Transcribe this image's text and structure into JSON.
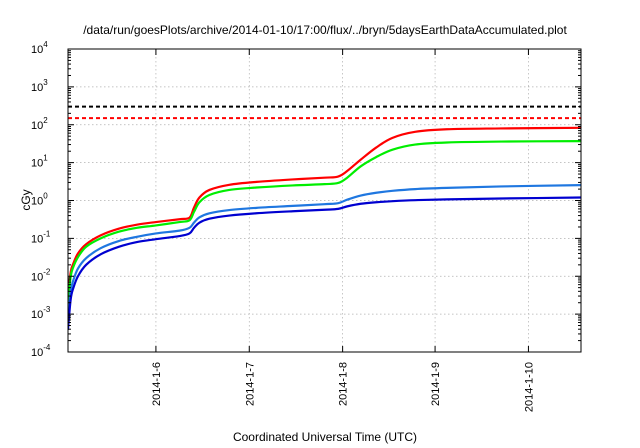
{
  "chart_data": {
    "type": "line",
    "title": "/data/run/goesPlots/archive/2014-01-10/17:00/flux/../bryn/5daysEarthDataAccumulated.plot",
    "xlabel": "Coordinated Universal Time (UTC)",
    "ylabel": "cGy",
    "x_is_date": true,
    "xlim": [
      2014.0512,
      2014.1078
    ],
    "ylim_exp": [
      -4,
      4
    ],
    "y_scale": "log",
    "grid": true,
    "legend": "none",
    "x_ticks": [
      {
        "label": "2014-1-6",
        "x": 2014.0609
      },
      {
        "label": "2014-1-7",
        "x": 2014.0712
      },
      {
        "label": "2014-1-8",
        "x": 2014.0815
      },
      {
        "label": "2014-1-9",
        "x": 2014.0917
      },
      {
        "label": "2014-1-10",
        "x": 2014.102
      }
    ],
    "y_ticks": [
      {
        "base": "10",
        "exp": "-4",
        "value": -4
      },
      {
        "base": "10",
        "exp": "-3",
        "value": -3
      },
      {
        "base": "10",
        "exp": "-2",
        "value": -2
      },
      {
        "base": "10",
        "exp": "-1",
        "value": -1
      },
      {
        "base": "10",
        "exp": "0",
        "value": 0
      },
      {
        "base": "10",
        "exp": "1",
        "value": 1
      },
      {
        "base": "10",
        "exp": "2",
        "value": 2
      },
      {
        "base": "10",
        "exp": "3",
        "value": 3
      },
      {
        "base": "10",
        "exp": "4",
        "value": 4
      }
    ],
    "thresholds": [
      {
        "value": 300,
        "color": "#000000"
      },
      {
        "value": 150,
        "color": "#ff0000"
      }
    ],
    "series": [
      {
        "color": "#ff0000",
        "points": [
          [
            2014.0512,
            0.003
          ],
          [
            2014.0515,
            0.013
          ],
          [
            2014.0518,
            0.022
          ],
          [
            2014.0523,
            0.04
          ],
          [
            2014.0532,
            0.07
          ],
          [
            2014.0548,
            0.12
          ],
          [
            2014.0568,
            0.18
          ],
          [
            2014.0588,
            0.23
          ],
          [
            2014.0609,
            0.27
          ],
          [
            2014.0635,
            0.32
          ],
          [
            2014.0646,
            0.35
          ],
          [
            2014.0651,
            0.65
          ],
          [
            2014.0657,
            1.2
          ],
          [
            2014.0668,
            1.9
          ],
          [
            2014.069,
            2.6
          ],
          [
            2014.072,
            3.1
          ],
          [
            2014.076,
            3.6
          ],
          [
            2014.0795,
            4.0
          ],
          [
            2014.081,
            4.3
          ],
          [
            2014.082,
            6.0
          ],
          [
            2014.0835,
            12
          ],
          [
            2014.0852,
            25
          ],
          [
            2014.087,
            45
          ],
          [
            2014.0895,
            65
          ],
          [
            2014.093,
            76
          ],
          [
            2014.099,
            80
          ],
          [
            2014.1078,
            83
          ]
        ]
      },
      {
        "color": "#00ee00",
        "points": [
          [
            2014.0512,
            0.002
          ],
          [
            2014.0515,
            0.01
          ],
          [
            2014.0518,
            0.018
          ],
          [
            2014.0523,
            0.032
          ],
          [
            2014.0532,
            0.06
          ],
          [
            2014.0548,
            0.1
          ],
          [
            2014.0568,
            0.15
          ],
          [
            2014.0588,
            0.19
          ],
          [
            2014.0609,
            0.22
          ],
          [
            2014.0635,
            0.27
          ],
          [
            2014.0646,
            0.3
          ],
          [
            2014.0651,
            0.5
          ],
          [
            2014.0657,
            0.9
          ],
          [
            2014.0668,
            1.4
          ],
          [
            2014.069,
            1.9
          ],
          [
            2014.072,
            2.2
          ],
          [
            2014.076,
            2.5
          ],
          [
            2014.0795,
            2.7
          ],
          [
            2014.081,
            2.9
          ],
          [
            2014.082,
            4.0
          ],
          [
            2014.0835,
            8
          ],
          [
            2014.0852,
            14
          ],
          [
            2014.087,
            22
          ],
          [
            2014.0895,
            30
          ],
          [
            2014.093,
            34
          ],
          [
            2014.099,
            36
          ],
          [
            2014.1078,
            37
          ]
        ]
      },
      {
        "color": "#1f77e0",
        "points": [
          [
            2014.0512,
            0.0007
          ],
          [
            2014.0515,
            0.004
          ],
          [
            2014.0518,
            0.008
          ],
          [
            2014.0523,
            0.016
          ],
          [
            2014.0532,
            0.03
          ],
          [
            2014.0548,
            0.055
          ],
          [
            2014.0568,
            0.085
          ],
          [
            2014.0588,
            0.11
          ],
          [
            2014.0609,
            0.135
          ],
          [
            2014.0635,
            0.16
          ],
          [
            2014.0646,
            0.19
          ],
          [
            2014.0651,
            0.26
          ],
          [
            2014.0657,
            0.36
          ],
          [
            2014.0668,
            0.46
          ],
          [
            2014.069,
            0.56
          ],
          [
            2014.072,
            0.64
          ],
          [
            2014.076,
            0.72
          ],
          [
            2014.0795,
            0.8
          ],
          [
            2014.081,
            0.85
          ],
          [
            2014.082,
            1.05
          ],
          [
            2014.0835,
            1.35
          ],
          [
            2014.0852,
            1.6
          ],
          [
            2014.087,
            1.8
          ],
          [
            2014.0895,
            2.0
          ],
          [
            2014.093,
            2.15
          ],
          [
            2014.099,
            2.35
          ],
          [
            2014.1078,
            2.55
          ]
        ]
      },
      {
        "color": "#0000d0",
        "points": [
          [
            2014.0512,
            0.0004
          ],
          [
            2014.0515,
            0.0025
          ],
          [
            2014.0518,
            0.005
          ],
          [
            2014.0523,
            0.01
          ],
          [
            2014.0532,
            0.02
          ],
          [
            2014.0548,
            0.038
          ],
          [
            2014.0568,
            0.06
          ],
          [
            2014.0588,
            0.08
          ],
          [
            2014.0609,
            0.095
          ],
          [
            2014.0635,
            0.115
          ],
          [
            2014.0646,
            0.135
          ],
          [
            2014.0651,
            0.19
          ],
          [
            2014.0657,
            0.26
          ],
          [
            2014.0668,
            0.33
          ],
          [
            2014.069,
            0.4
          ],
          [
            2014.072,
            0.46
          ],
          [
            2014.076,
            0.52
          ],
          [
            2014.0795,
            0.57
          ],
          [
            2014.081,
            0.6
          ],
          [
            2014.082,
            0.7
          ],
          [
            2014.0835,
            0.82
          ],
          [
            2014.0852,
            0.9
          ],
          [
            2014.087,
            0.96
          ],
          [
            2014.0895,
            1.02
          ],
          [
            2014.093,
            1.07
          ],
          [
            2014.099,
            1.13
          ],
          [
            2014.1078,
            1.2
          ]
        ]
      }
    ]
  }
}
